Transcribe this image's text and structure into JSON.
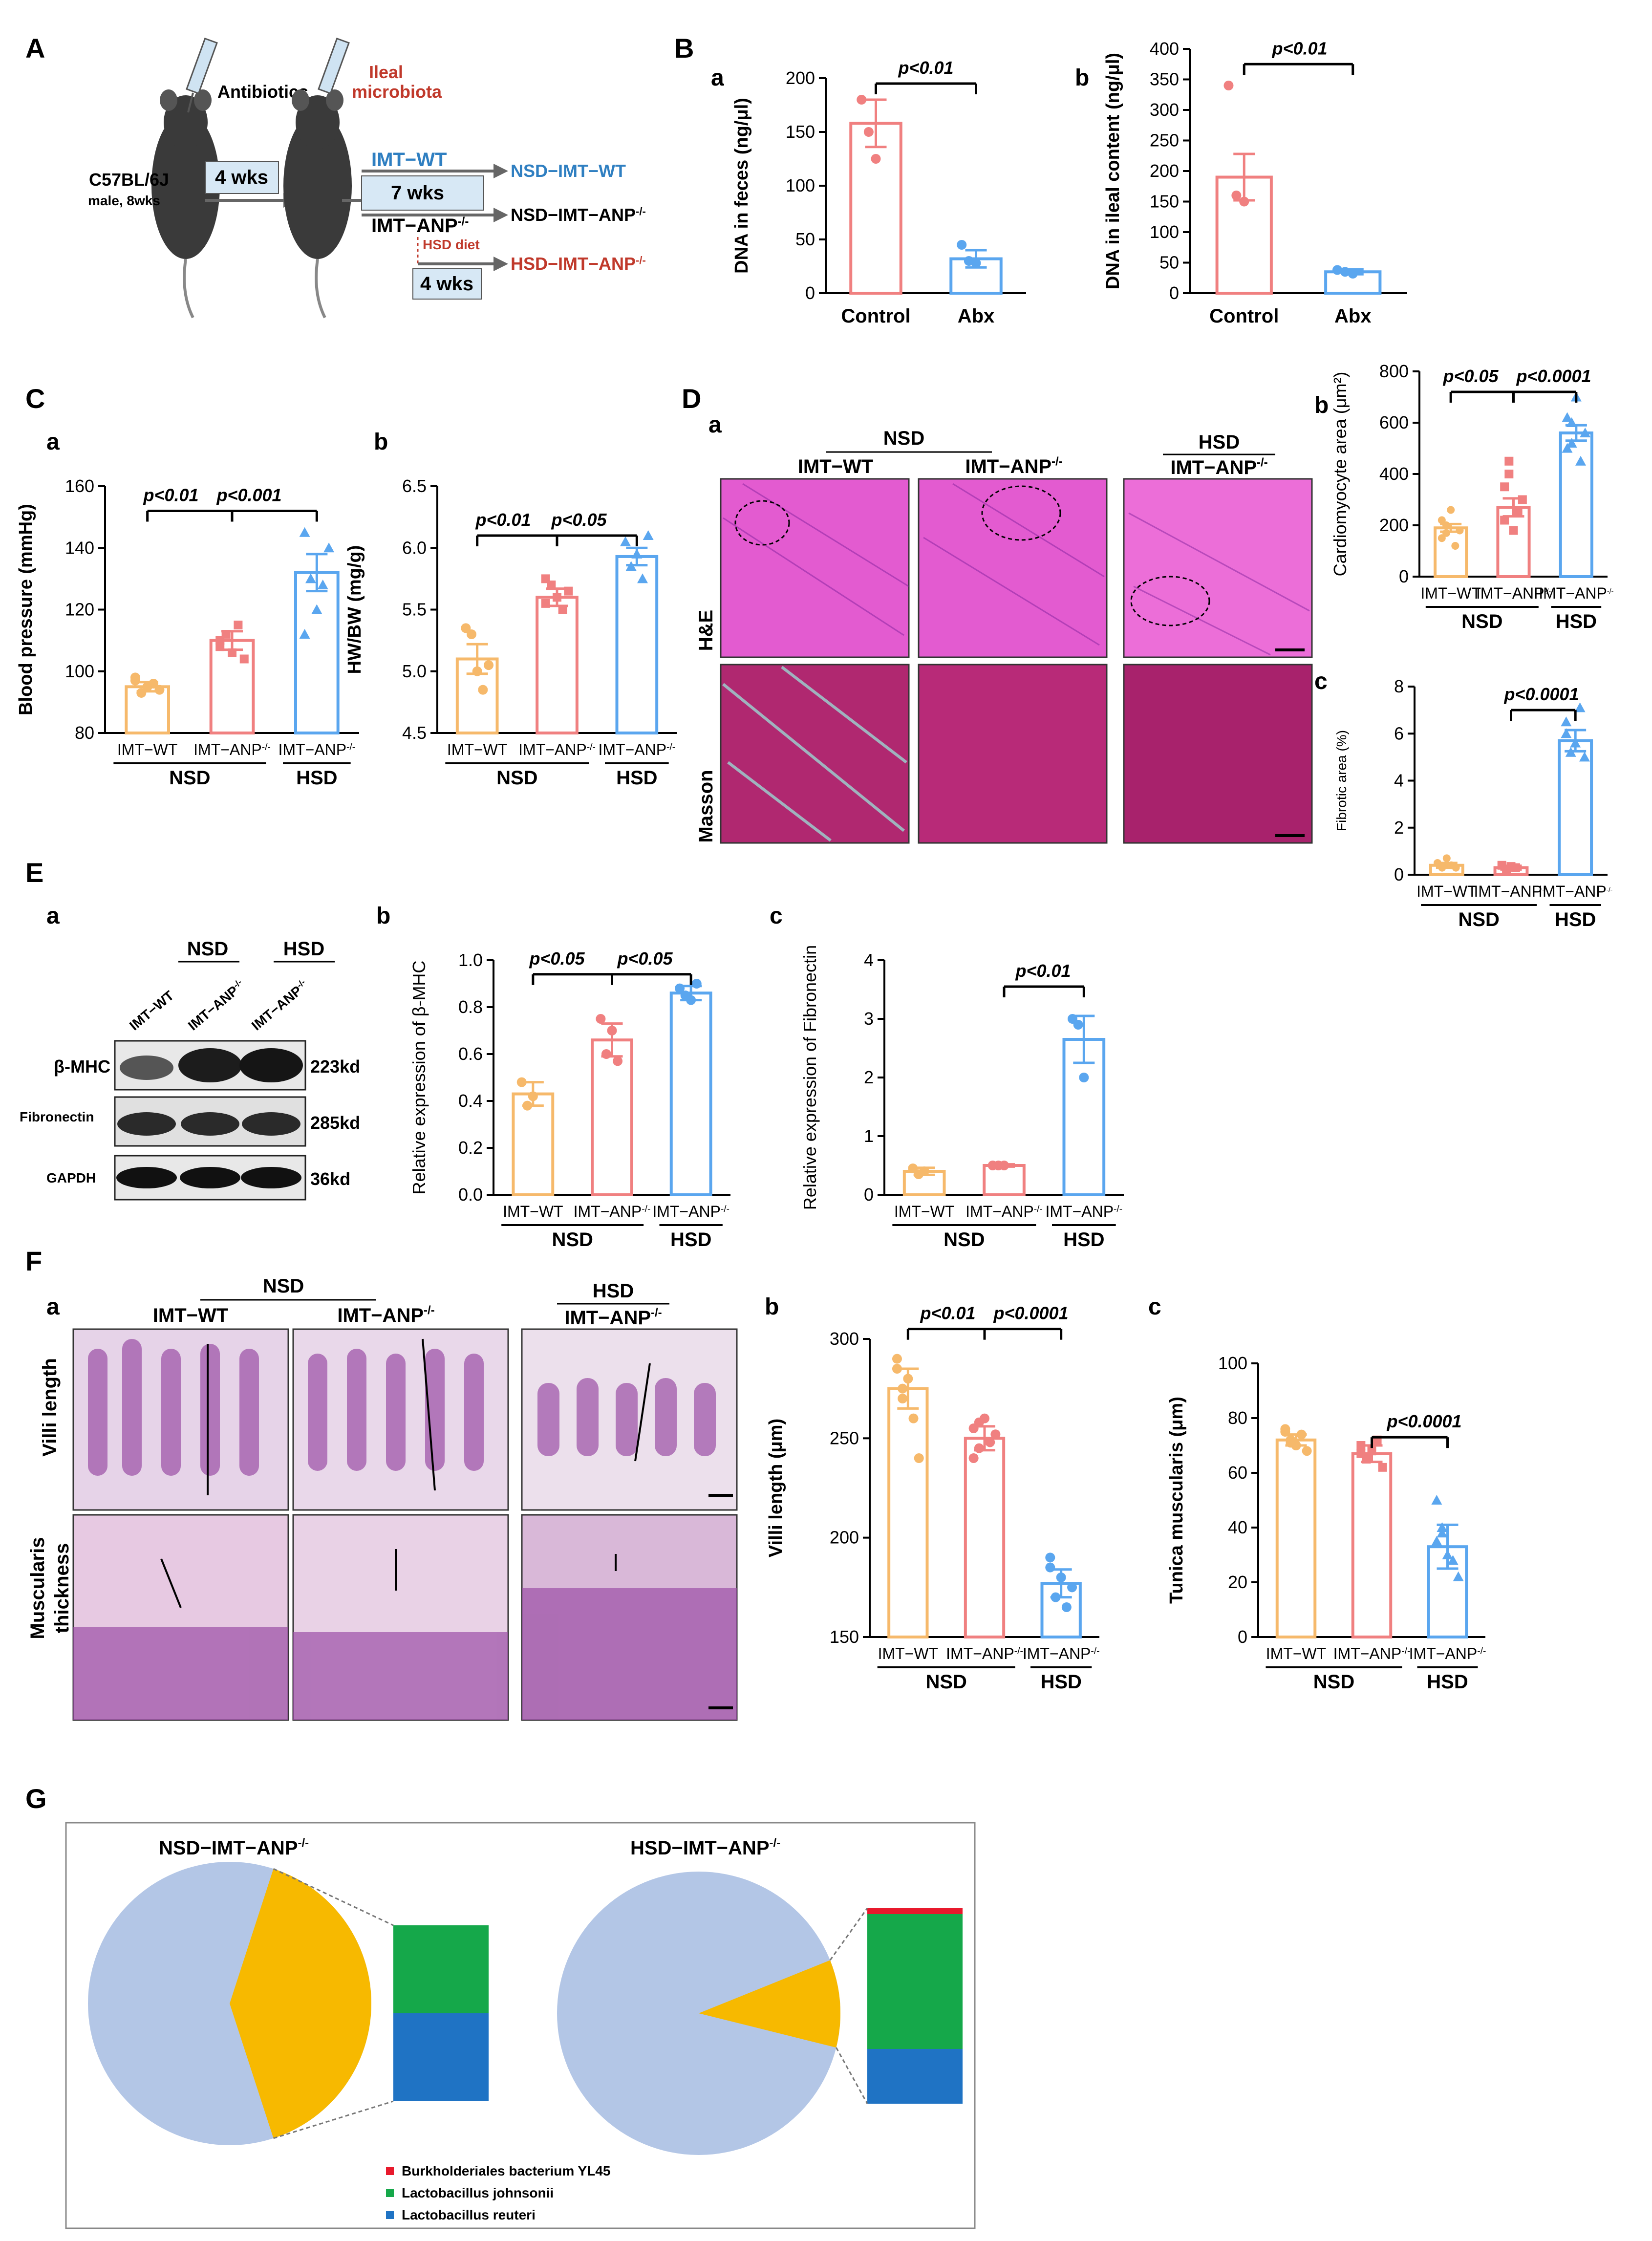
{
  "colors": {
    "wt": "#f6b96b",
    "anp": "#f08080",
    "hsd": "#5aa6ef",
    "control": "#f08080",
    "abx": "#5aa6ef",
    "pie_other": "#b3c6e6",
    "pie_lacto": "#f7b900",
    "burk": "#e8192c",
    "johnsonii": "#15a84a",
    "reuteri": "#1f73c4",
    "he": "#e64fc8",
    "masson": "#b8246e",
    "ileal_text": "#c0392b",
    "wt_text": "#2f7fc1"
  },
  "panels": {
    "A": "A",
    "B": "B",
    "C": "C",
    "D": "D",
    "E": "E",
    "F": "F",
    "G": "G"
  },
  "sub": {
    "a": "a",
    "b": "b",
    "c": "c"
  },
  "groups": {
    "nsd": "NSD",
    "hsd": "HSD",
    "wt": "IMT−WT",
    "anp": "IMT−ANP",
    "sup": "-/-"
  },
  "panelA": {
    "antibiotics": "Antibiotics",
    "ileal": "Ileal",
    "microbiota": "microbiota",
    "mouse_line1": "C57BL/6J",
    "mouse_line2": "male, 8wks",
    "wks4": "4 wks",
    "wks7": "7 wks",
    "wks4b": "4 wks",
    "imt_wt": "IMT−WT",
    "imt_anp": "IMT−ANP",
    "hsd_diet": "HSD diet",
    "out1": "NSD−IMT−WT",
    "out2": "NSD−IMT−ANP",
    "out3": "HSD−IMT−ANP"
  },
  "panelB": {
    "a": {
      "ylabel": "DNA in feces (ng/μl)",
      "ticks": [
        "0",
        "50",
        "100",
        "150",
        "200"
      ],
      "cats": [
        "Control",
        "Abx"
      ],
      "p": "p<0.01"
    },
    "b": {
      "ylabel": "DNA in ileal content (ng/μl)",
      "ticks": [
        "0",
        "50",
        "100",
        "150",
        "200",
        "250",
        "300",
        "350",
        "400"
      ],
      "cats": [
        "Control",
        "Abx"
      ],
      "p": "p<0.01"
    }
  },
  "panelC": {
    "a": {
      "ylabel": "Blood pressure (mmHg)",
      "ticks": [
        "80",
        "100",
        "120",
        "140",
        "160"
      ],
      "p1": "p<0.01",
      "p2": "p<0.001"
    },
    "b": {
      "ylabel": "HW/BW (mg/g)",
      "ticks": [
        "4.5",
        "5.0",
        "5.5",
        "6.0",
        "6.5"
      ],
      "p1": "p<0.01",
      "p2": "p<0.05"
    }
  },
  "panelD": {
    "he": "H&E",
    "masson": "Masson",
    "b": {
      "ylabel": "Cardiomyocyte area (μm²)",
      "ticks": [
        "0",
        "200",
        "400",
        "600",
        "800"
      ],
      "p1": "p<0.05",
      "p2": "p<0.0001"
    },
    "c": {
      "ylabel": "Fibrotic area (%)",
      "ticks": [
        "0",
        "2",
        "4",
        "6",
        "8"
      ],
      "p": "p<0.0001"
    }
  },
  "panelE": {
    "blots": [
      "β-MHC",
      "Fibronectin",
      "GAPDH"
    ],
    "sizes": [
      "223kd",
      "285kd",
      "36kd"
    ],
    "b": {
      "ylabel": "Relative expression of β-MHC",
      "ticks": [
        "0.0",
        "0.2",
        "0.4",
        "0.6",
        "0.8",
        "1.0"
      ],
      "p1": "p<0.05",
      "p2": "p<0.05"
    },
    "c": {
      "ylabel": "Relative expression of Fibronectin",
      "ticks": [
        "0",
        "1",
        "2",
        "3",
        "4"
      ],
      "p": "p<0.01"
    }
  },
  "panelF": {
    "villi": "Villi length",
    "muscularis1": "Muscularis",
    "muscularis2": "thickness",
    "b": {
      "ylabel": "Villi length (μm)",
      "ticks": [
        "150",
        "200",
        "250",
        "300"
      ],
      "p1": "p<0.01",
      "p2": "p<0.0001"
    },
    "c": {
      "ylabel": "Tunica muscularis (μm)",
      "ticks": [
        "0",
        "20",
        "40",
        "60",
        "80",
        "100"
      ],
      "p": "p<0.0001"
    }
  },
  "panelG": {
    "title1": "NSD−IMT−ANP",
    "title2": "HSD−IMT−ANP",
    "legend": [
      "Burkholderiales bacterium YL45",
      "Lactobacillus johnsonii",
      "Lactobacillus reuteri"
    ]
  },
  "chart_data": [
    {
      "type": "bar",
      "id": "B-a",
      "categories": [
        "Control",
        "Abx"
      ],
      "values": [
        158,
        32
      ],
      "ylim": [
        0,
        200
      ],
      "ylabel": "DNA in feces (ng/μl)"
    },
    {
      "type": "bar",
      "id": "B-b",
      "categories": [
        "Control",
        "Abx"
      ],
      "values": [
        190,
        35
      ],
      "ylim": [
        0,
        400
      ],
      "ylabel": "DNA in ileal content (ng/μl)"
    },
    {
      "type": "bar",
      "id": "C-a",
      "categories": [
        "IMT−WT",
        "IMT−ANP",
        "IMT−ANP"
      ],
      "values": [
        95,
        110,
        132
      ],
      "ylim": [
        80,
        160
      ],
      "ylabel": "Blood pressure (mmHg)"
    },
    {
      "type": "bar",
      "id": "C-b",
      "categories": [
        "IMT−WT",
        "IMT−ANP",
        "IMT−ANP"
      ],
      "values": [
        5.1,
        5.6,
        5.93
      ],
      "ylim": [
        4.5,
        6.5
      ],
      "ylabel": "HW/BW (mg/g)"
    },
    {
      "type": "bar",
      "id": "D-b",
      "categories": [
        "IMT−WT",
        "IMT−ANP",
        "IMT−ANP"
      ],
      "values": [
        190,
        270,
        560
      ],
      "ylim": [
        0,
        800
      ],
      "ylabel": "Cardiomyocyte area (μm²)"
    },
    {
      "type": "bar",
      "id": "D-c",
      "categories": [
        "IMT−WT",
        "IMT−ANP",
        "IMT−ANP"
      ],
      "values": [
        0.4,
        0.3,
        5.7
      ],
      "ylim": [
        0,
        8
      ],
      "ylabel": "Fibrotic area (%)"
    },
    {
      "type": "bar",
      "id": "E-b",
      "categories": [
        "IMT−WT",
        "IMT−ANP",
        "IMT−ANP"
      ],
      "values": [
        0.43,
        0.66,
        0.86
      ],
      "ylim": [
        0,
        1.0
      ],
      "ylabel": "Relative expression of β-MHC"
    },
    {
      "type": "bar",
      "id": "E-c",
      "categories": [
        "IMT−WT",
        "IMT−ANP",
        "IMT−ANP"
      ],
      "values": [
        0.4,
        0.5,
        2.65
      ],
      "ylim": [
        0,
        4
      ],
      "ylabel": "Relative expression of Fibronectin"
    },
    {
      "type": "bar",
      "id": "F-b",
      "categories": [
        "IMT−WT",
        "IMT−ANP",
        "IMT−ANP"
      ],
      "values": [
        275,
        250,
        177
      ],
      "ylim": [
        150,
        300
      ],
      "ylabel": "Villi length (μm)"
    },
    {
      "type": "bar",
      "id": "F-c",
      "categories": [
        "IMT−WT",
        "IMT−ANP",
        "IMT−ANP"
      ],
      "values": [
        72,
        67,
        33
      ],
      "ylim": [
        0,
        100
      ],
      "ylabel": "Tunica muscularis (μm)"
    },
    {
      "type": "pie",
      "id": "G-1",
      "labels": [
        "Other",
        "Lactobacillus"
      ],
      "values": [
        60,
        40
      ],
      "stack": [
        0,
        50,
        50
      ]
    },
    {
      "type": "pie",
      "id": "G-2",
      "labels": [
        "Other",
        "Lactobacillus"
      ],
      "values": [
        90,
        10
      ],
      "stack": [
        3,
        69,
        28
      ]
    }
  ]
}
